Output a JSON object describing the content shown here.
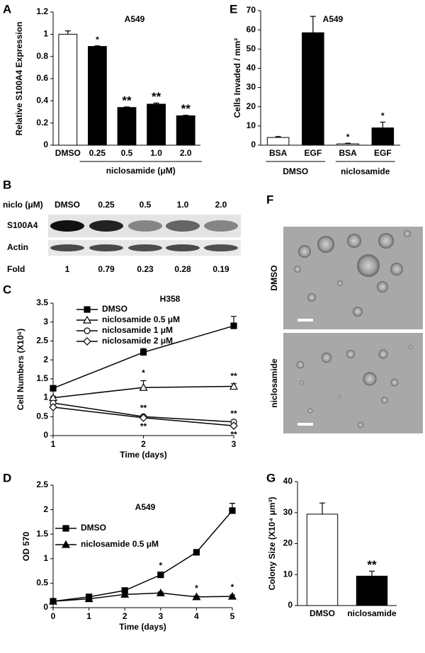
{
  "chart_data": [
    {
      "type": "bar",
      "panel": "A",
      "title": "A549",
      "y_label": "Relative S100A4 Expression",
      "categories": [
        "DMSO",
        "0.25",
        "0.5",
        "1.0",
        "2.0"
      ],
      "group_label": "niclosamide (μM)",
      "values": [
        1.0,
        0.89,
        0.34,
        0.37,
        0.265
      ],
      "errors": [
        0.03,
        0.005,
        0.005,
        0.01,
        0.005
      ],
      "colors": [
        "#ffffff",
        "#000000",
        "#000000",
        "#000000",
        "#000000"
      ],
      "significance": [
        null,
        "*",
        "**",
        "**",
        "**"
      ],
      "ylim": [
        0,
        1.2
      ],
      "yticks": [
        0,
        0.2,
        0.4,
        0.6,
        0.8,
        1,
        1.2
      ]
    },
    {
      "type": "line",
      "panel": "C",
      "title": "H358",
      "y_label": "Cell Numbers (X10⁶)",
      "x_label": "Time (days)",
      "x": [
        1,
        2,
        3
      ],
      "xlim": [
        1,
        3
      ],
      "xticks": [
        1,
        2,
        3
      ],
      "ylim": [
        0,
        3.5
      ],
      "yticks": [
        0,
        0.5,
        1,
        1.5,
        2,
        2.5,
        3,
        3.5
      ],
      "legend": "upper left",
      "series": [
        {
          "name": "DMSO",
          "color": "#000000",
          "marker": "square",
          "filled": true,
          "values": [
            1.25,
            2.2,
            2.9
          ],
          "errors": [
            0.05,
            0.1,
            0.25
          ],
          "significance": [
            null,
            null,
            null
          ]
        },
        {
          "name": "niclosamide 0.5 μM",
          "color": "#000000",
          "marker": "triangle",
          "filled": false,
          "values": [
            1.0,
            1.27,
            1.3
          ],
          "errors": [
            0.04,
            0.18,
            0.07
          ],
          "significance": [
            null,
            "*",
            "**"
          ]
        },
        {
          "name": "niclosamide 1 μM",
          "color": "#000000",
          "marker": "circle",
          "filled": false,
          "values": [
            0.86,
            0.5,
            0.36
          ],
          "errors": [
            0.02,
            0.03,
            0.02
          ],
          "significance": [
            null,
            "**",
            "**"
          ]
        },
        {
          "name": "niclosamide 2 μM",
          "color": "#000000",
          "marker": "diamond",
          "filled": false,
          "values": [
            0.75,
            0.47,
            0.26
          ],
          "errors": [
            0.02,
            0.02,
            0.02
          ],
          "significance": [
            null,
            "**",
            "**"
          ]
        }
      ]
    },
    {
      "type": "line",
      "panel": "D",
      "title": "A549",
      "y_label": "OD 570",
      "x_label": "Time (days)",
      "x": [
        0,
        1,
        2,
        3,
        4,
        5
      ],
      "xlim": [
        0,
        5
      ],
      "xticks": [
        0,
        1,
        2,
        3,
        4,
        5
      ],
      "ylim": [
        0,
        2.5
      ],
      "yticks": [
        0,
        0.5,
        1,
        1.5,
        2,
        2.5
      ],
      "legend": "upper left",
      "series": [
        {
          "name": "DMSO",
          "color": "#000000",
          "marker": "square",
          "filled": true,
          "values": [
            0.13,
            0.22,
            0.35,
            0.67,
            1.13,
            1.98
          ],
          "errors": [
            0.02,
            0.02,
            0.03,
            0.03,
            0.03,
            0.15
          ],
          "significance": [
            null,
            null,
            null,
            "*",
            null,
            null
          ]
        },
        {
          "name": "niclosamide 0.5 μM",
          "color": "#000000",
          "marker": "triangle",
          "filled": true,
          "values": [
            0.13,
            0.18,
            0.27,
            0.3,
            0.22,
            0.23
          ],
          "errors": [
            0.02,
            0.02,
            0.03,
            0.02,
            0.02,
            0.03
          ],
          "significance": [
            null,
            null,
            null,
            null,
            "*",
            "*"
          ]
        }
      ]
    },
    {
      "type": "bar",
      "panel": "E",
      "title": "A549",
      "y_label": "Cells Invaded / mm²",
      "categories": [
        "BSA",
        "EGF",
        "BSA",
        "EGF"
      ],
      "groups": [
        "DMSO",
        "niclosamide"
      ],
      "values": [
        4,
        58.5,
        0.7,
        9
      ],
      "errors": [
        0.5,
        8.5,
        0.3,
        3
      ],
      "colors": [
        "#ffffff",
        "#000000",
        "#ffffff",
        "#000000"
      ],
      "significance": [
        null,
        null,
        "*",
        "*"
      ],
      "ylim": [
        0,
        70
      ],
      "yticks": [
        0,
        10,
        20,
        30,
        40,
        50,
        60,
        70
      ]
    },
    {
      "type": "bar",
      "panel": "G",
      "y_label": "Colony Size (X10⁴ μm³)",
      "categories": [
        "DMSO",
        "niclosamide"
      ],
      "values": [
        29.5,
        9.5
      ],
      "errors": [
        3.6,
        1.6
      ],
      "colors": [
        "#ffffff",
        "#000000"
      ],
      "significance": [
        null,
        "**"
      ],
      "ylim": [
        0,
        40
      ],
      "yticks": [
        0,
        10,
        20,
        30,
        40
      ]
    }
  ],
  "blot": {
    "panel": "B",
    "header_label": "niclo (μM)",
    "lanes": [
      "DMSO",
      "0.25",
      "0.5",
      "1.0",
      "2.0"
    ],
    "rows": [
      "S100A4",
      "Actin"
    ],
    "fold_label": "Fold",
    "fold": [
      1,
      0.79,
      0.23,
      0.28,
      0.19
    ]
  },
  "micrographs": {
    "panel": "F",
    "rows": [
      "DMSO",
      "niclosamide"
    ]
  }
}
